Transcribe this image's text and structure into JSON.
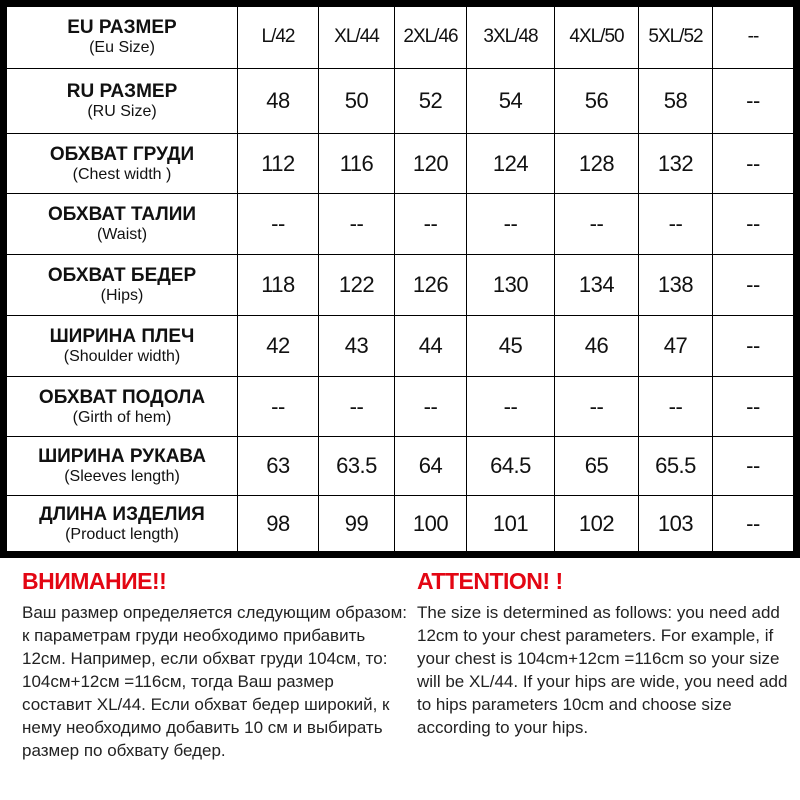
{
  "table": {
    "rows": [
      {
        "ru": "EU РАЗМЕР",
        "en": "(Eu Size)",
        "values": [
          "L/42",
          "XL/44",
          "2XL/46",
          "3XL/48",
          "4XL/50",
          "5XL/52",
          "--"
        ]
      },
      {
        "ru": "RU РАЗМЕР",
        "en": "(RU Size)",
        "values": [
          "48",
          "50",
          "52",
          "54",
          "56",
          "58",
          "--"
        ]
      },
      {
        "ru": "ОБХВАТ ГРУДИ",
        "en": "(Chest width )",
        "values": [
          "112",
          "116",
          "120",
          "124",
          "128",
          "132",
          "--"
        ]
      },
      {
        "ru": "ОБХВАТ ТАЛИИ",
        "en": "(Waist)",
        "values": [
          "--",
          "--",
          "--",
          "--",
          "--",
          "--",
          "--"
        ]
      },
      {
        "ru": "ОБХВАТ БЕДЕР",
        "en": "(Hips)",
        "values": [
          "118",
          "122",
          "126",
          "130",
          "134",
          "138",
          "--"
        ]
      },
      {
        "ru": "ШИРИНА ПЛЕЧ",
        "en": "(Shoulder width)",
        "values": [
          "42",
          "43",
          "44",
          "45",
          "46",
          "47",
          "--"
        ]
      },
      {
        "ru": "ОБХВАТ ПОДОЛА",
        "en": "(Girth of hem)",
        "values": [
          "--",
          "--",
          "--",
          "--",
          "--",
          "--",
          "--"
        ]
      },
      {
        "ru": "ШИРИНА РУКАВА",
        "en": "(Sleeves length)",
        "values": [
          "63",
          "63.5",
          "64",
          "64.5",
          "65",
          "65.5",
          "--"
        ]
      },
      {
        "ru": "ДЛИНА ИЗДЕЛИЯ",
        "en": "(Product length)",
        "values": [
          "98",
          "99",
          "100",
          "101",
          "102",
          "103",
          "--"
        ]
      }
    ]
  },
  "notes": {
    "ru_title": "ВНИМАНИЕ!!",
    "ru_text": "Ваш размер определяется следующим образом: к параметрам груди необходимо прибавить 12см. Например, если обхват груди  104см, то: 104см+12см =116см, тогда Ваш размер составит XL/44. Если обхват бедер широкий, к нему необходимо добавить 10 см и выбирать размер по обхвату бедер.",
    "en_title": "ATTENTION! !",
    "en_text": "The size is determined as follows: you need add 12cm to your chest parameters. For example, if your chest is 104cm+12cm =116cm so your size will be XL/44. If your hips are wide, you need add to hips parameters 10cm and choose size according to your hips.",
    "title_color": "#e30613"
  }
}
